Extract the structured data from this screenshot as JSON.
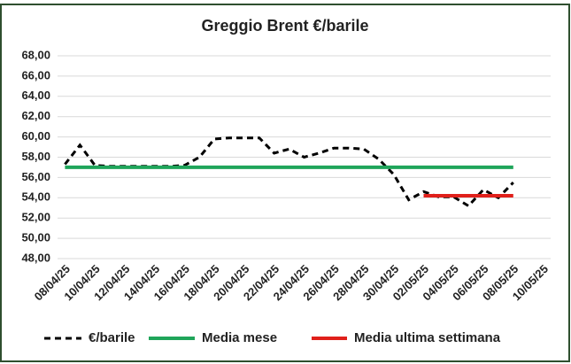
{
  "chart_data": {
    "type": "line",
    "title": "Greggio Brent €/barile",
    "categories": [
      "08/04/25",
      null,
      "10/04/25",
      null,
      "12/04/25",
      null,
      "14/04/25",
      null,
      "16/04/25",
      null,
      "18/04/25",
      null,
      "20/04/25",
      null,
      "22/04/25",
      null,
      "24/04/25",
      null,
      "26/04/25",
      null,
      "28/04/25",
      null,
      "30/04/25",
      null,
      "02/05/25",
      null,
      "04/05/25",
      null,
      "06/05/25",
      null,
      "08/05/25",
      null,
      "10/05/25"
    ],
    "series": [
      {
        "name": "€/barile",
        "color": "#000000",
        "dashed": true,
        "values": [
          57.3,
          59.2,
          57.2,
          57.1,
          57.1,
          57.1,
          57.1,
          57.1,
          57.2,
          58.0,
          59.8,
          59.9,
          59.9,
          59.9,
          58.4,
          58.8,
          58.0,
          58.4,
          58.9,
          58.9,
          58.8,
          57.8,
          56.3,
          53.8,
          54.6,
          54.1,
          54.1,
          53.2,
          54.8,
          54.0,
          55.5,
          null,
          null
        ]
      },
      {
        "name": "Media mese",
        "color": "#1fa55a",
        "dashed": false,
        "values": [
          57.0,
          57.0,
          57.0,
          57.0,
          57.0,
          57.0,
          57.0,
          57.0,
          57.0,
          57.0,
          57.0,
          57.0,
          57.0,
          57.0,
          57.0,
          57.0,
          57.0,
          57.0,
          57.0,
          57.0,
          57.0,
          57.0,
          57.0,
          57.0,
          57.0,
          57.0,
          57.0,
          57.0,
          57.0,
          57.0,
          57.0,
          null,
          null
        ]
      },
      {
        "name": "Media ultima settimana",
        "color": "#e0201b",
        "dashed": false,
        "values": [
          null,
          null,
          null,
          null,
          null,
          null,
          null,
          null,
          null,
          null,
          null,
          null,
          null,
          null,
          null,
          null,
          null,
          null,
          null,
          null,
          null,
          null,
          null,
          null,
          54.2,
          54.2,
          54.2,
          54.2,
          54.2,
          54.2,
          54.2,
          null,
          null
        ]
      }
    ],
    "ylim": [
      48,
      68
    ],
    "yticks": [
      {
        "value": 48,
        "label": "48,00"
      },
      {
        "value": 50,
        "label": "50,00"
      },
      {
        "value": 52,
        "label": "52,00"
      },
      {
        "value": 54,
        "label": "54,00"
      },
      {
        "value": 56,
        "label": "56,00"
      },
      {
        "value": 58,
        "label": "58,00"
      },
      {
        "value": 60,
        "label": "60,00"
      },
      {
        "value": 62,
        "label": "62,00"
      },
      {
        "value": 64,
        "label": "64,00"
      },
      {
        "value": 66,
        "label": "66,00"
      },
      {
        "value": 68,
        "label": "68,00"
      }
    ],
    "grid": true
  }
}
